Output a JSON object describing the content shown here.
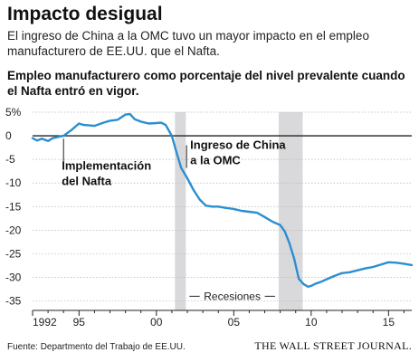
{
  "header": {
    "title": "Impacto desigual",
    "subtitle": "El ingreso de China a la OMC tuvo un mayor impacto en el empleo manufacturero de EE.UU. que el Nafta."
  },
  "chart_data": {
    "type": "line",
    "title": "Empleo manufacturero como porcentaje del nivel prevalente cuando el Nafta entró en vigor.",
    "xlabel": "",
    "ylabel": "",
    "xlim": [
      1992,
      2016.5
    ],
    "ylim": [
      -37,
      5
    ],
    "y_ticks": [
      5,
      0,
      -5,
      -10,
      -15,
      -20,
      -25,
      -30,
      -35
    ],
    "y_tick_labels": [
      "5%",
      "0",
      "-5",
      "-10",
      "-15",
      "-20",
      "-25",
      "-30",
      "-35"
    ],
    "x_ticks": [
      1992,
      1995,
      2000,
      2005,
      2010,
      2015
    ],
    "x_tick_labels": [
      "1992",
      "95",
      "00",
      "05",
      "10",
      "15"
    ],
    "grid": true,
    "line_color": "#2a8fd0",
    "recession_color": "#d9d9dc",
    "recessions": [
      {
        "start": 2001.2,
        "end": 2001.9
      },
      {
        "start": 2007.9,
        "end": 2009.45
      }
    ],
    "recession_label": "Recesiones",
    "annotations": [
      {
        "text": [
          "Implementación",
          "del Nafta"
        ],
        "x": 1994.0
      },
      {
        "text": [
          "Ingreso de China",
          "a la OMC"
        ],
        "x": 2001.95
      }
    ],
    "series": [
      {
        "x": [
          1992.0,
          1992.3,
          1992.6,
          1993.0,
          1993.3,
          1993.7,
          1994.0,
          1994.5,
          1995.0,
          1995.3,
          1995.7,
          1996.0,
          1996.5,
          1997.0,
          1997.5,
          1998.0,
          1998.3,
          1998.6,
          1999.0,
          1999.5,
          2000.0,
          2000.3,
          2000.6,
          2001.0,
          2001.3,
          2001.6,
          2002.0,
          2002.4,
          2002.8,
          2003.2,
          2003.6,
          2004.0,
          2004.5,
          2005.0,
          2005.5,
          2006.0,
          2006.5,
          2007.0,
          2007.5,
          2008.0,
          2008.3,
          2008.6,
          2008.9,
          2009.2,
          2009.5,
          2009.8,
          2010.0,
          2010.3,
          2010.6,
          2011.0,
          2011.5,
          2012.0,
          2012.5,
          2013.0,
          2013.5,
          2014.0,
          2014.5,
          2015.0,
          2015.5,
          2016.0,
          2016.5
        ],
        "values": [
          -0.5,
          -1.0,
          -0.6,
          -1.1,
          -0.5,
          -0.2,
          0.0,
          1.2,
          2.6,
          2.3,
          2.2,
          2.1,
          2.7,
          3.2,
          3.4,
          4.5,
          4.6,
          3.5,
          3.0,
          2.6,
          2.7,
          2.8,
          2.3,
          0.0,
          -3.5,
          -6.8,
          -9.0,
          -11.5,
          -13.5,
          -14.8,
          -15.0,
          -15.0,
          -15.3,
          -15.5,
          -15.9,
          -16.1,
          -16.3,
          -17.2,
          -18.2,
          -18.9,
          -20.3,
          -22.8,
          -26.0,
          -30.3,
          -31.4,
          -32.0,
          -31.8,
          -31.3,
          -31.0,
          -30.4,
          -29.7,
          -29.1,
          -28.9,
          -28.5,
          -28.1,
          -27.8,
          -27.3,
          -26.8,
          -26.9,
          -27.1,
          -27.4
        ]
      }
    ]
  },
  "footer": {
    "source": "Fuente:  Departmento del Trabajo de EE.UU.",
    "publisher": "THE WALL STREET JOURNAL."
  }
}
